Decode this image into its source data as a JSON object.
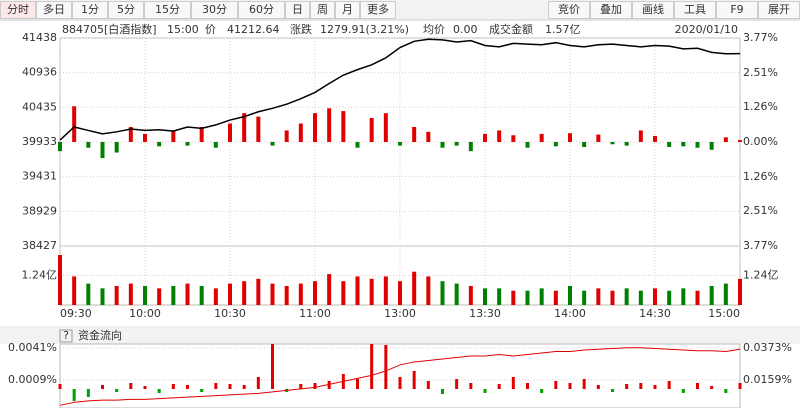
{
  "toolbar": {
    "left": [
      "分时",
      "多日",
      "1分",
      "5分",
      "15分",
      "30分",
      "60分",
      "日",
      "周",
      "月",
      "更多"
    ],
    "selected": 0,
    "right": [
      "竞价",
      "叠加",
      "画线",
      "工具",
      "F9",
      "展开"
    ]
  },
  "info": {
    "code": "884705[白酒指数]",
    "time": "15:00",
    "price_label": "价",
    "price": "41212.64",
    "change_label": "涨跌",
    "change": "1279.91(3.21%)",
    "avg_label": "均价",
    "avg": "0.00",
    "amount_label": "成交金额",
    "amount": "1.57亿",
    "date": "2020/01/10"
  },
  "chart_data": [
    {
      "type": "line",
      "grid": true,
      "up_color": "#e00000",
      "down_color": "#008000",
      "x": [
        0,
        5,
        10,
        15,
        20,
        25,
        30,
        35,
        40,
        45,
        50,
        55,
        60,
        65,
        70,
        75,
        80,
        85,
        90,
        95,
        100,
        105,
        110,
        115,
        120,
        125,
        130,
        135,
        140,
        145,
        150,
        155,
        160,
        165,
        170,
        175,
        180,
        185,
        190,
        195,
        200,
        205,
        210,
        215,
        220,
        225,
        230,
        235,
        240
      ],
      "xlim": [
        0,
        240
      ],
      "xticks": [
        {
          "value": 0,
          "label": "09:30"
        },
        {
          "value": 30,
          "label": "10:00"
        },
        {
          "value": 60,
          "label": "10:30"
        },
        {
          "value": 90,
          "label": "11:00"
        },
        {
          "value": 120,
          "label": "13:00"
        },
        {
          "value": 150,
          "label": "13:30"
        },
        {
          "value": 180,
          "label": "14:00"
        },
        {
          "value": 210,
          "label": "14:30"
        },
        {
          "value": 240,
          "label": "15:00"
        }
      ],
      "ylim": [
        38427,
        41438
      ],
      "yticks": [
        41438,
        40936,
        40435,
        39933,
        39431,
        38929,
        38427
      ],
      "y2lim": [
        -3.77,
        3.77
      ],
      "y2ticks": [
        {
          "value": 3.77,
          "label": "3.77%"
        },
        {
          "value": 2.51,
          "label": "2.51%"
        },
        {
          "value": 1.26,
          "label": "1.26%"
        },
        {
          "value": 0,
          "label": "0.00%"
        },
        {
          "value": -1.26,
          "label": "1.26%"
        },
        {
          "value": -2.51,
          "label": "2.51%"
        },
        {
          "value": -3.77,
          "label": "3.77%"
        }
      ],
      "series": [
        {
          "color": "#000000",
          "values": [
            39960,
            40150,
            40100,
            40050,
            40080,
            40120,
            40100,
            40110,
            40090,
            40150,
            40130,
            40180,
            40250,
            40300,
            40370,
            40420,
            40480,
            40560,
            40650,
            40780,
            40900,
            40980,
            41050,
            41150,
            41300,
            41390,
            41420,
            41410,
            41380,
            41400,
            41330,
            41310,
            41360,
            41350,
            41340,
            41370,
            41330,
            41310,
            41340,
            41350,
            41330,
            41310,
            41330,
            41320,
            41280,
            41290,
            41230,
            41210,
            41212.64
          ]
        }
      ],
      "flow": {
        "values": [
          39800,
          40450,
          39850,
          39700,
          39780,
          40150,
          40050,
          39870,
          40100,
          39880,
          40150,
          39850,
          40200,
          40350,
          40300,
          39880,
          40100,
          40200,
          40350,
          40420,
          40380,
          39850,
          40280,
          40350,
          39880,
          40150,
          40080,
          39850,
          39880,
          39800,
          40050,
          40100,
          40030,
          39850,
          40050,
          39870,
          40060,
          39860,
          40040,
          39900,
          39880,
          40100,
          40020,
          39860,
          39870,
          39850,
          39820,
          40000,
          39960
        ]
      },
      "volume": {
        "ylim": [
          0,
          2.48
        ],
        "yticks": [
          {
            "value": 1.24,
            "label": "1.24亿"
          }
        ],
        "values": [
          2.1,
          1.2,
          0.9,
          0.7,
          0.8,
          0.9,
          0.8,
          0.7,
          0.8,
          0.9,
          0.8,
          0.7,
          0.9,
          1.0,
          1.1,
          0.9,
          0.8,
          0.9,
          1.0,
          1.3,
          1.0,
          1.2,
          1.1,
          1.2,
          1.0,
          1.4,
          1.2,
          1.0,
          0.9,
          0.8,
          0.7,
          0.7,
          0.6,
          0.6,
          0.7,
          0.6,
          0.8,
          0.6,
          0.7,
          0.6,
          0.7,
          0.6,
          0.7,
          0.6,
          0.7,
          0.6,
          0.8,
          0.9,
          1.1
        ]
      }
    },
    {
      "type": "bar",
      "title": "资金流向",
      "help_icon": "?",
      "up_color": "#e00000",
      "down_color": "#00a000",
      "x": [
        0,
        5,
        10,
        15,
        20,
        25,
        30,
        35,
        40,
        45,
        50,
        55,
        60,
        65,
        70,
        75,
        80,
        85,
        90,
        95,
        100,
        105,
        110,
        115,
        120,
        125,
        130,
        135,
        140,
        145,
        150,
        155,
        160,
        165,
        170,
        175,
        180,
        185,
        190,
        195,
        200,
        205,
        210,
        215,
        220,
        225,
        230,
        235,
        240
      ],
      "xlim": [
        0,
        240
      ],
      "ylim": [
        -0.0019,
        0.0045
      ],
      "yticks": [
        {
          "value": 0.0041,
          "label": "0.0041%"
        },
        {
          "value": 0.0009,
          "label": "0.0009%"
        }
      ],
      "y2lim": [
        -0.0028,
        0.04
      ],
      "y2ticks": [
        {
          "value": 0.0373,
          "label": "0.0373%"
        },
        {
          "value": 0.0159,
          "label": "0.0159%"
        }
      ],
      "series": [
        {
          "type": "bar",
          "values": [
            0.0005,
            -0.0012,
            -0.0008,
            0.0004,
            -0.0003,
            0.0006,
            0.0003,
            -0.0004,
            0.0005,
            0.0004,
            -0.0003,
            0.0006,
            0.0005,
            0.0004,
            0.0012,
            0.0045,
            -0.0003,
            0.0005,
            0.0006,
            0.0008,
            0.0015,
            0.001,
            0.0045,
            0.0044,
            0.0012,
            0.0018,
            0.0008,
            -0.0005,
            0.001,
            0.0006,
            -0.0004,
            0.0005,
            0.0012,
            0.0006,
            -0.0004,
            0.0008,
            0.0006,
            0.001,
            0.0004,
            -0.0003,
            0.0005,
            0.0006,
            0.0004,
            0.0008,
            -0.0004,
            0.0006,
            0.0003,
            -0.0004,
            0.0006
          ]
        },
        {
          "type": "line",
          "axis": "y2",
          "color": "#e00000",
          "values": [
            -0.001,
            0.001,
            0.002,
            0.0025,
            0.0025,
            0.003,
            0.003,
            0.0035,
            0.004,
            0.0045,
            0.005,
            0.0055,
            0.006,
            0.0065,
            0.007,
            0.008,
            0.009,
            0.01,
            0.011,
            0.013,
            0.015,
            0.017,
            0.019,
            0.022,
            0.026,
            0.028,
            0.029,
            0.03,
            0.031,
            0.032,
            0.032,
            0.033,
            0.032,
            0.033,
            0.034,
            0.035,
            0.035,
            0.036,
            0.0365,
            0.037,
            0.0375,
            0.0375,
            0.037,
            0.0365,
            0.036,
            0.0355,
            0.0355,
            0.035,
            0.0365
          ]
        }
      ]
    }
  ]
}
